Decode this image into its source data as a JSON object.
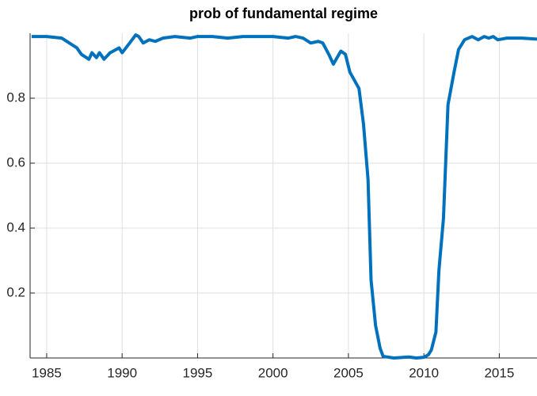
{
  "chart_data": {
    "type": "line",
    "title": "prob of fundamental regime",
    "x": [
      1984.0,
      1985,
      1986,
      1986.5,
      1987,
      1987.3,
      1987.8,
      1988.0,
      1988.3,
      1988.5,
      1988.8,
      1989.2,
      1989.8,
      1990,
      1990.5,
      1990.9,
      1991.1,
      1991.4,
      1991.8,
      1992.2,
      1992.7,
      1993.5,
      1994.5,
      1995,
      1996,
      1997,
      1998,
      1999,
      2000,
      2001,
      2001.5,
      2002,
      2002.5,
      2003,
      2003.3,
      2003.7,
      2004,
      2004.5,
      2004.8,
      2005.1,
      2005.7,
      2006,
      2006.3,
      2006.5,
      2006.8,
      2007.1,
      2007.3,
      2008,
      2009,
      2009.5,
      2010,
      2010.3,
      2010.5,
      2010.8,
      2011,
      2011.3,
      2011.6,
      2012,
      2012.3,
      2012.7,
      2013.2,
      2013.6,
      2014,
      2014.3,
      2014.6,
      2014.9,
      2015.5,
      2016.5,
      2017.5
    ],
    "series": [
      {
        "name": "prob",
        "color": "#0072bd",
        "values": [
          0.99,
          0.99,
          0.985,
          0.97,
          0.955,
          0.935,
          0.92,
          0.94,
          0.925,
          0.94,
          0.92,
          0.94,
          0.955,
          0.94,
          0.97,
          0.995,
          0.99,
          0.97,
          0.98,
          0.975,
          0.985,
          0.99,
          0.985,
          0.99,
          0.99,
          0.985,
          0.99,
          0.99,
          0.99,
          0.985,
          0.99,
          0.985,
          0.97,
          0.975,
          0.97,
          0.935,
          0.905,
          0.945,
          0.935,
          0.88,
          0.83,
          0.72,
          0.55,
          0.24,
          0.1,
          0.03,
          0.005,
          0.0,
          0.003,
          0.0,
          0.002,
          0.01,
          0.025,
          0.08,
          0.27,
          0.43,
          0.78,
          0.88,
          0.95,
          0.98,
          0.99,
          0.98,
          0.99,
          0.985,
          0.99,
          0.98,
          0.985,
          0.985,
          0.982
        ]
      }
    ],
    "xlim": [
      1983.9,
      2017.5
    ],
    "ylim": [
      0,
      1
    ],
    "xticks": [
      1985,
      1990,
      1995,
      2000,
      2005,
      2010,
      2015
    ],
    "yticks": [
      0.2,
      0.4,
      0.6,
      0.8
    ],
    "grid": true
  }
}
